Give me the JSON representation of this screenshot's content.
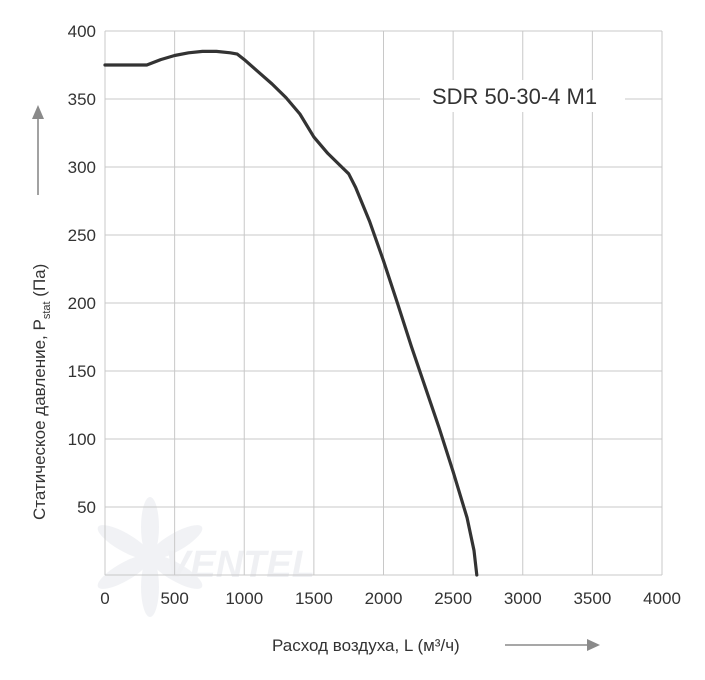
{
  "chart_data": {
    "type": "line",
    "title": "",
    "annotation": "SDR 50-30-4 M1",
    "xlabel": "Расход воздуха, L (м³/ч)",
    "ylabel_main": "Статическое давление, P",
    "ylabel_sub": "stat",
    "ylabel_unit": " (Па)",
    "xlim": [
      0,
      4000
    ],
    "ylim": [
      0,
      400
    ],
    "x_ticks": [
      0,
      500,
      1000,
      1500,
      2000,
      2500,
      3000,
      3500,
      4000
    ],
    "x_tick_labels": [
      "0",
      "500",
      "1000",
      "1500",
      "2000",
      "2500",
      "3000",
      "3500",
      "4000"
    ],
    "y_ticks": [
      50,
      100,
      150,
      200,
      250,
      300,
      350,
      400
    ],
    "y_tick_labels": [
      "50",
      "100",
      "150",
      "200",
      "250",
      "300",
      "350",
      "400"
    ],
    "grid": true,
    "watermark": "VENTEL",
    "colors": {
      "curve": "#333333",
      "grid": "#c8c8c8",
      "text": "#333333",
      "arrow": "#8a8a8a"
    },
    "series": [
      {
        "x": [
          0,
          300,
          400,
          500,
          600,
          700,
          800,
          900,
          950,
          1000,
          1100,
          1200,
          1300,
          1400,
          1500,
          1600,
          1700,
          1750,
          1800,
          1900,
          2000,
          2100,
          2200,
          2300,
          2400,
          2500,
          2600,
          2650,
          2670
        ],
        "y": [
          375,
          375,
          379,
          382,
          384,
          385,
          385,
          384,
          383,
          379,
          370,
          361,
          351,
          339,
          322,
          310,
          300,
          295,
          285,
          260,
          231,
          200,
          168,
          138,
          108,
          76,
          42,
          18,
          0
        ]
      }
    ]
  }
}
